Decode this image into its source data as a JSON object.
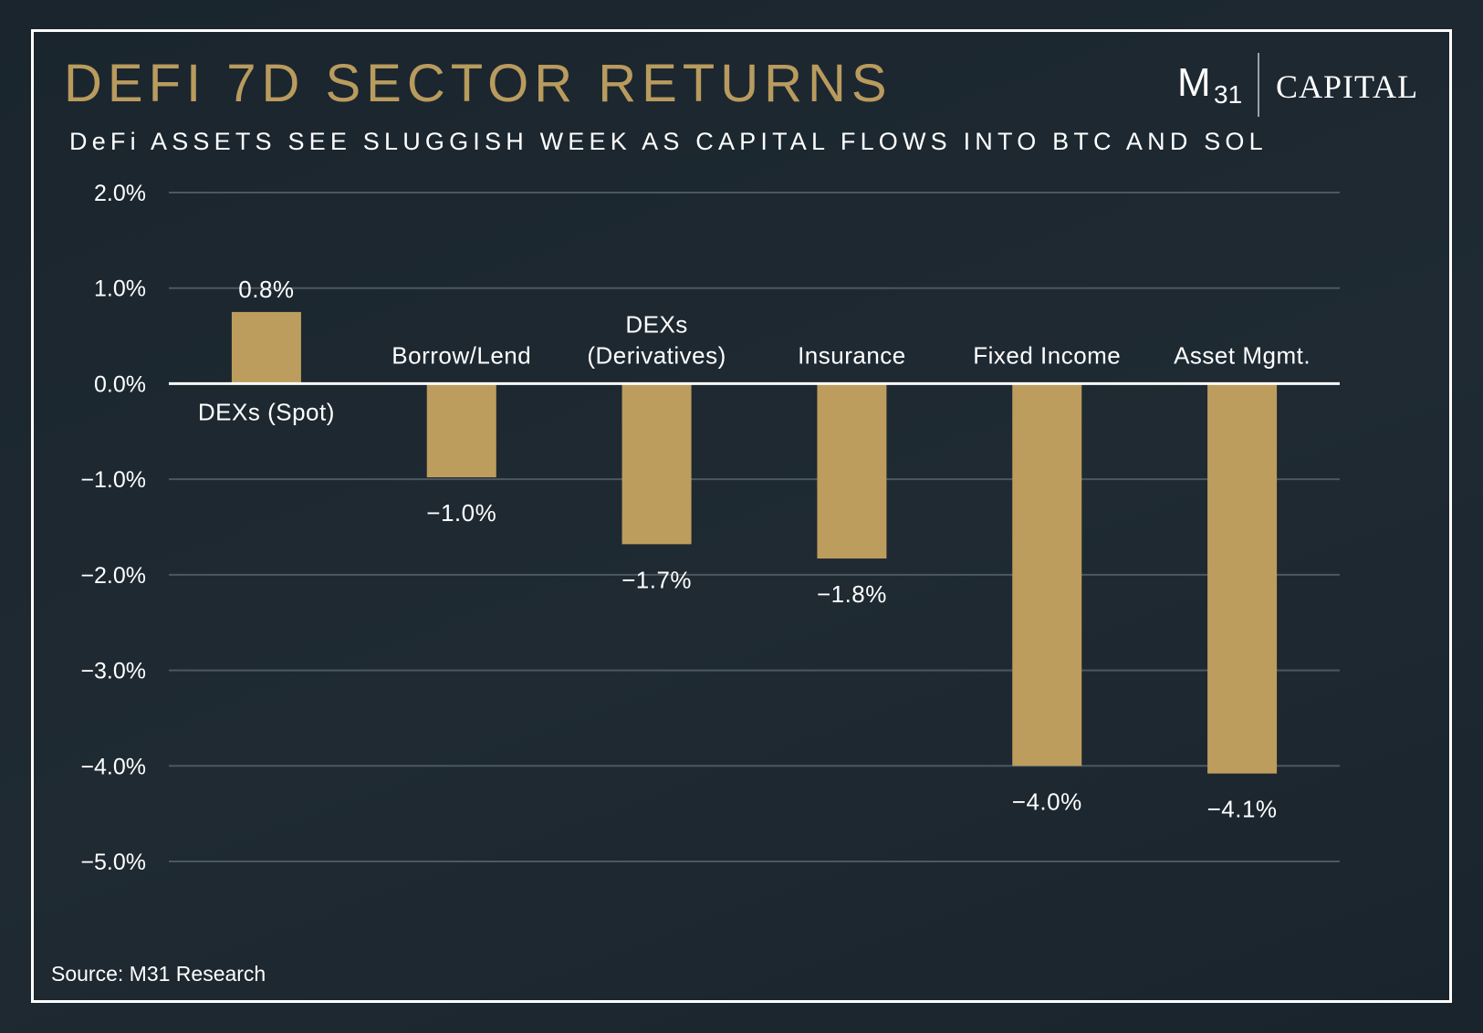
{
  "header": {
    "title": "DEFI 7D SECTOR RETURNS",
    "subtitle": "DeFi ASSETS SEE SLUGGISH WEEK AS CAPITAL FLOWS INTO BTC AND SOL"
  },
  "logo": {
    "m": "M",
    "number": "31",
    "word": "CAPITAL"
  },
  "footer": {
    "source": "Source: M31 Research"
  },
  "colors": {
    "bar": "#bd9d5d",
    "title": "#b99b5e",
    "gridline": "#4c5860",
    "zeroline": "#ffffff"
  },
  "chart_data": {
    "type": "bar",
    "categories": [
      [
        "DEXs (Spot)"
      ],
      [
        "Borrow/Lend"
      ],
      [
        "DEXs",
        "(Derivatives)"
      ],
      [
        "Insurance"
      ],
      [
        "Fixed Income"
      ],
      [
        "Asset Mgmt."
      ]
    ],
    "values": [
      0.75,
      -0.98,
      -1.68,
      -1.83,
      -4.0,
      -4.08
    ],
    "value_labels": [
      "0.8%",
      "−1.0%",
      "−1.7%",
      "−1.8%",
      "−4.0%",
      "−4.1%"
    ],
    "ylim": [
      -5,
      2
    ],
    "yticks": [
      2,
      1,
      0,
      -1,
      -2,
      -3,
      -4,
      -5
    ],
    "ytick_labels": [
      "2.0%",
      "1.0%",
      "0.0%",
      "−1.0%",
      "−2.0%",
      "−3.0%",
      "−4.0%",
      "−5.0%"
    ],
    "grid": true,
    "legend": "none"
  }
}
